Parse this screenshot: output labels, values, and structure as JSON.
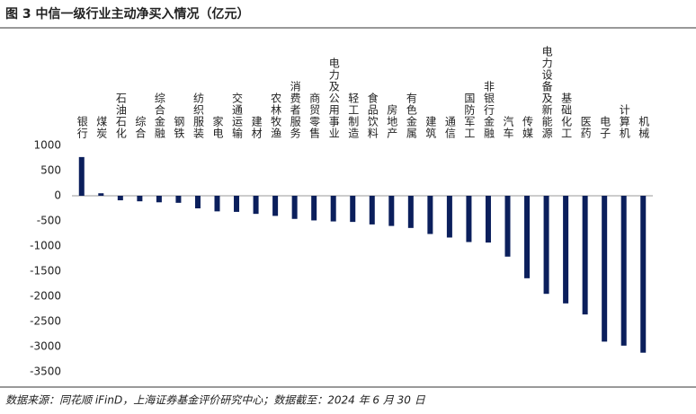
{
  "chart_data": {
    "type": "bar",
    "title": "图 3 中信一级行业主动净买入情况（亿元）",
    "source": "数据来源：同花顺 iFinD，上海证券基金评价研究中心；数据截至：2024 年 6 月 30 日",
    "categories": [
      "银行",
      "煤炭",
      "石油石化",
      "综合",
      "综合金融",
      "钢铁",
      "纺织服装",
      "家电",
      "交通运输",
      "建材",
      "农林牧渔",
      "消费者服务",
      "商贸零售",
      "电力及公用事业",
      "轻工制造",
      "食品饮料",
      "房地产",
      "有色金属",
      "建筑",
      "通信",
      "国防军工",
      "非银行金融",
      "汽车",
      "传媒",
      "电力设备及新能源",
      "基础化工",
      "医药",
      "电子",
      "计算机",
      "机械"
    ],
    "values": [
      770,
      50,
      -90,
      -110,
      -130,
      -140,
      -250,
      -310,
      -320,
      -360,
      -400,
      -460,
      -490,
      -510,
      -520,
      -570,
      -600,
      -640,
      -760,
      -830,
      -920,
      -930,
      -1210,
      -1640,
      -1950,
      -2140,
      -2360,
      -2900,
      -2980,
      -3120
    ],
    "color": "#0b1f5c",
    "ylim": [
      -3500,
      1000
    ],
    "yticks": [
      1000,
      500,
      0,
      -500,
      -1000,
      -1500,
      -2000,
      -2500,
      -3000,
      -3500
    ],
    "grid": false
  }
}
